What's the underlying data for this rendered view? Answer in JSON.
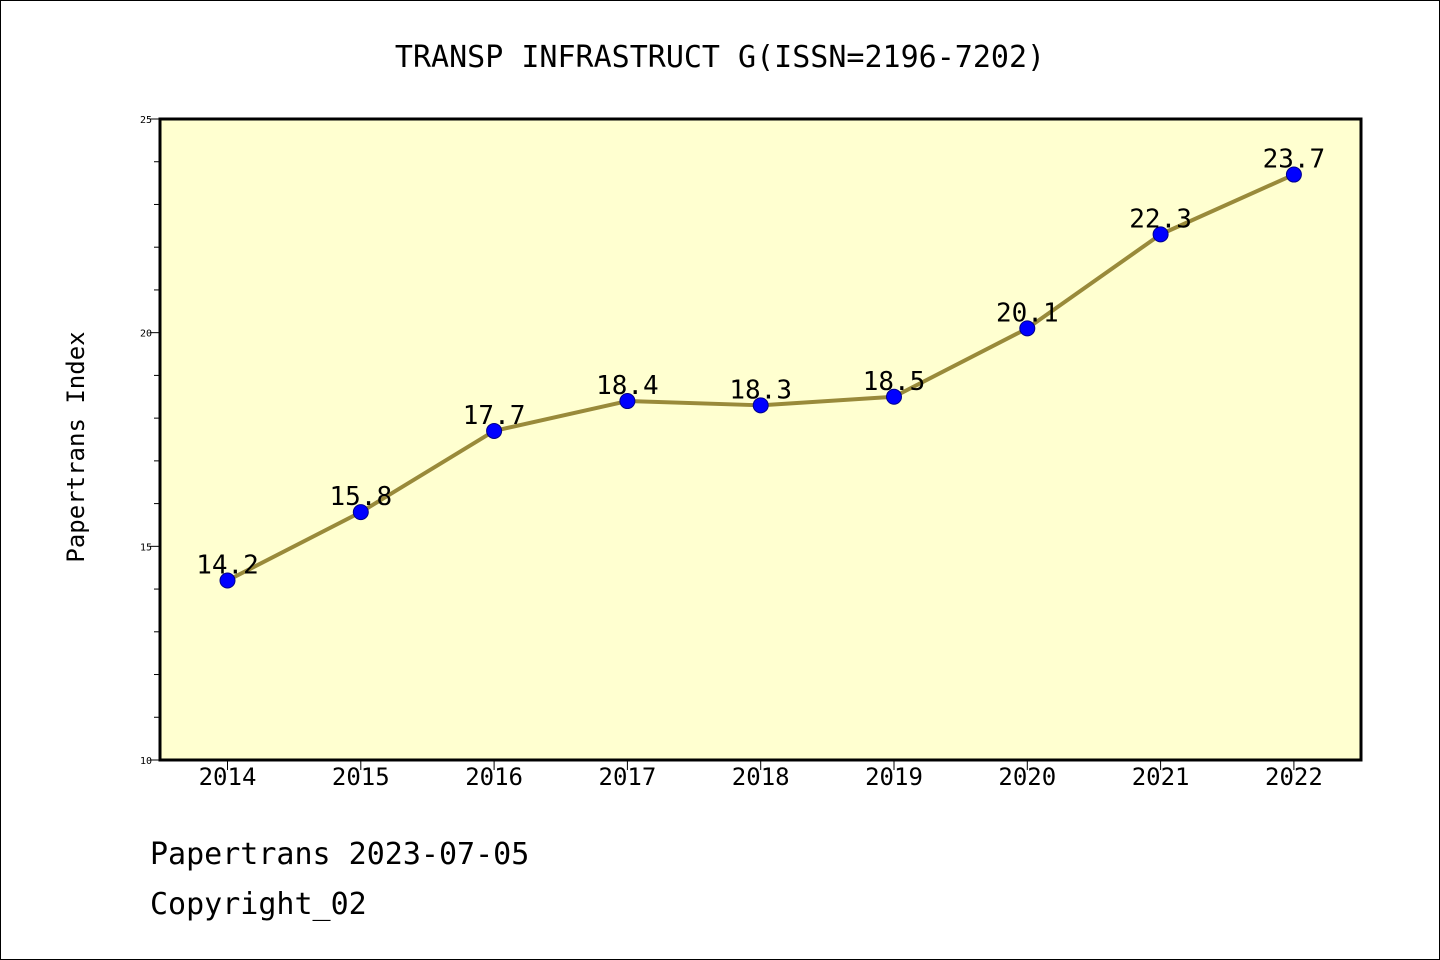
{
  "chart_data": {
    "type": "line",
    "title": "TRANSP INFRASTRUCT G(ISSN=2196-7202)",
    "xlabel": "",
    "ylabel": "Papertrans Index",
    "categories": [
      "2014",
      "2015",
      "2016",
      "2017",
      "2018",
      "2019",
      "2020",
      "2021",
      "2022"
    ],
    "series": [
      {
        "values": [
          14.2,
          15.8,
          17.7,
          18.4,
          18.3,
          18.5,
          20.1,
          22.3,
          23.7
        ],
        "labels": [
          "14.2",
          "15.8",
          "17.7",
          "18.4",
          "18.3",
          "18.5",
          "20.1",
          "22.3",
          "23.7"
        ]
      }
    ],
    "ylim": [
      10,
      25
    ],
    "yticks": [
      "10",
      "15",
      "20",
      "25"
    ],
    "grid": false,
    "legend": "none",
    "colors": {
      "plot_background": "#ffffd0",
      "line": "#998a3a",
      "marker": "#0000ff",
      "marker_edge": "#00008b"
    }
  },
  "footer": {
    "date_line": "Papertrans 2023-07-05",
    "copyright_line": "Copyright_02"
  }
}
